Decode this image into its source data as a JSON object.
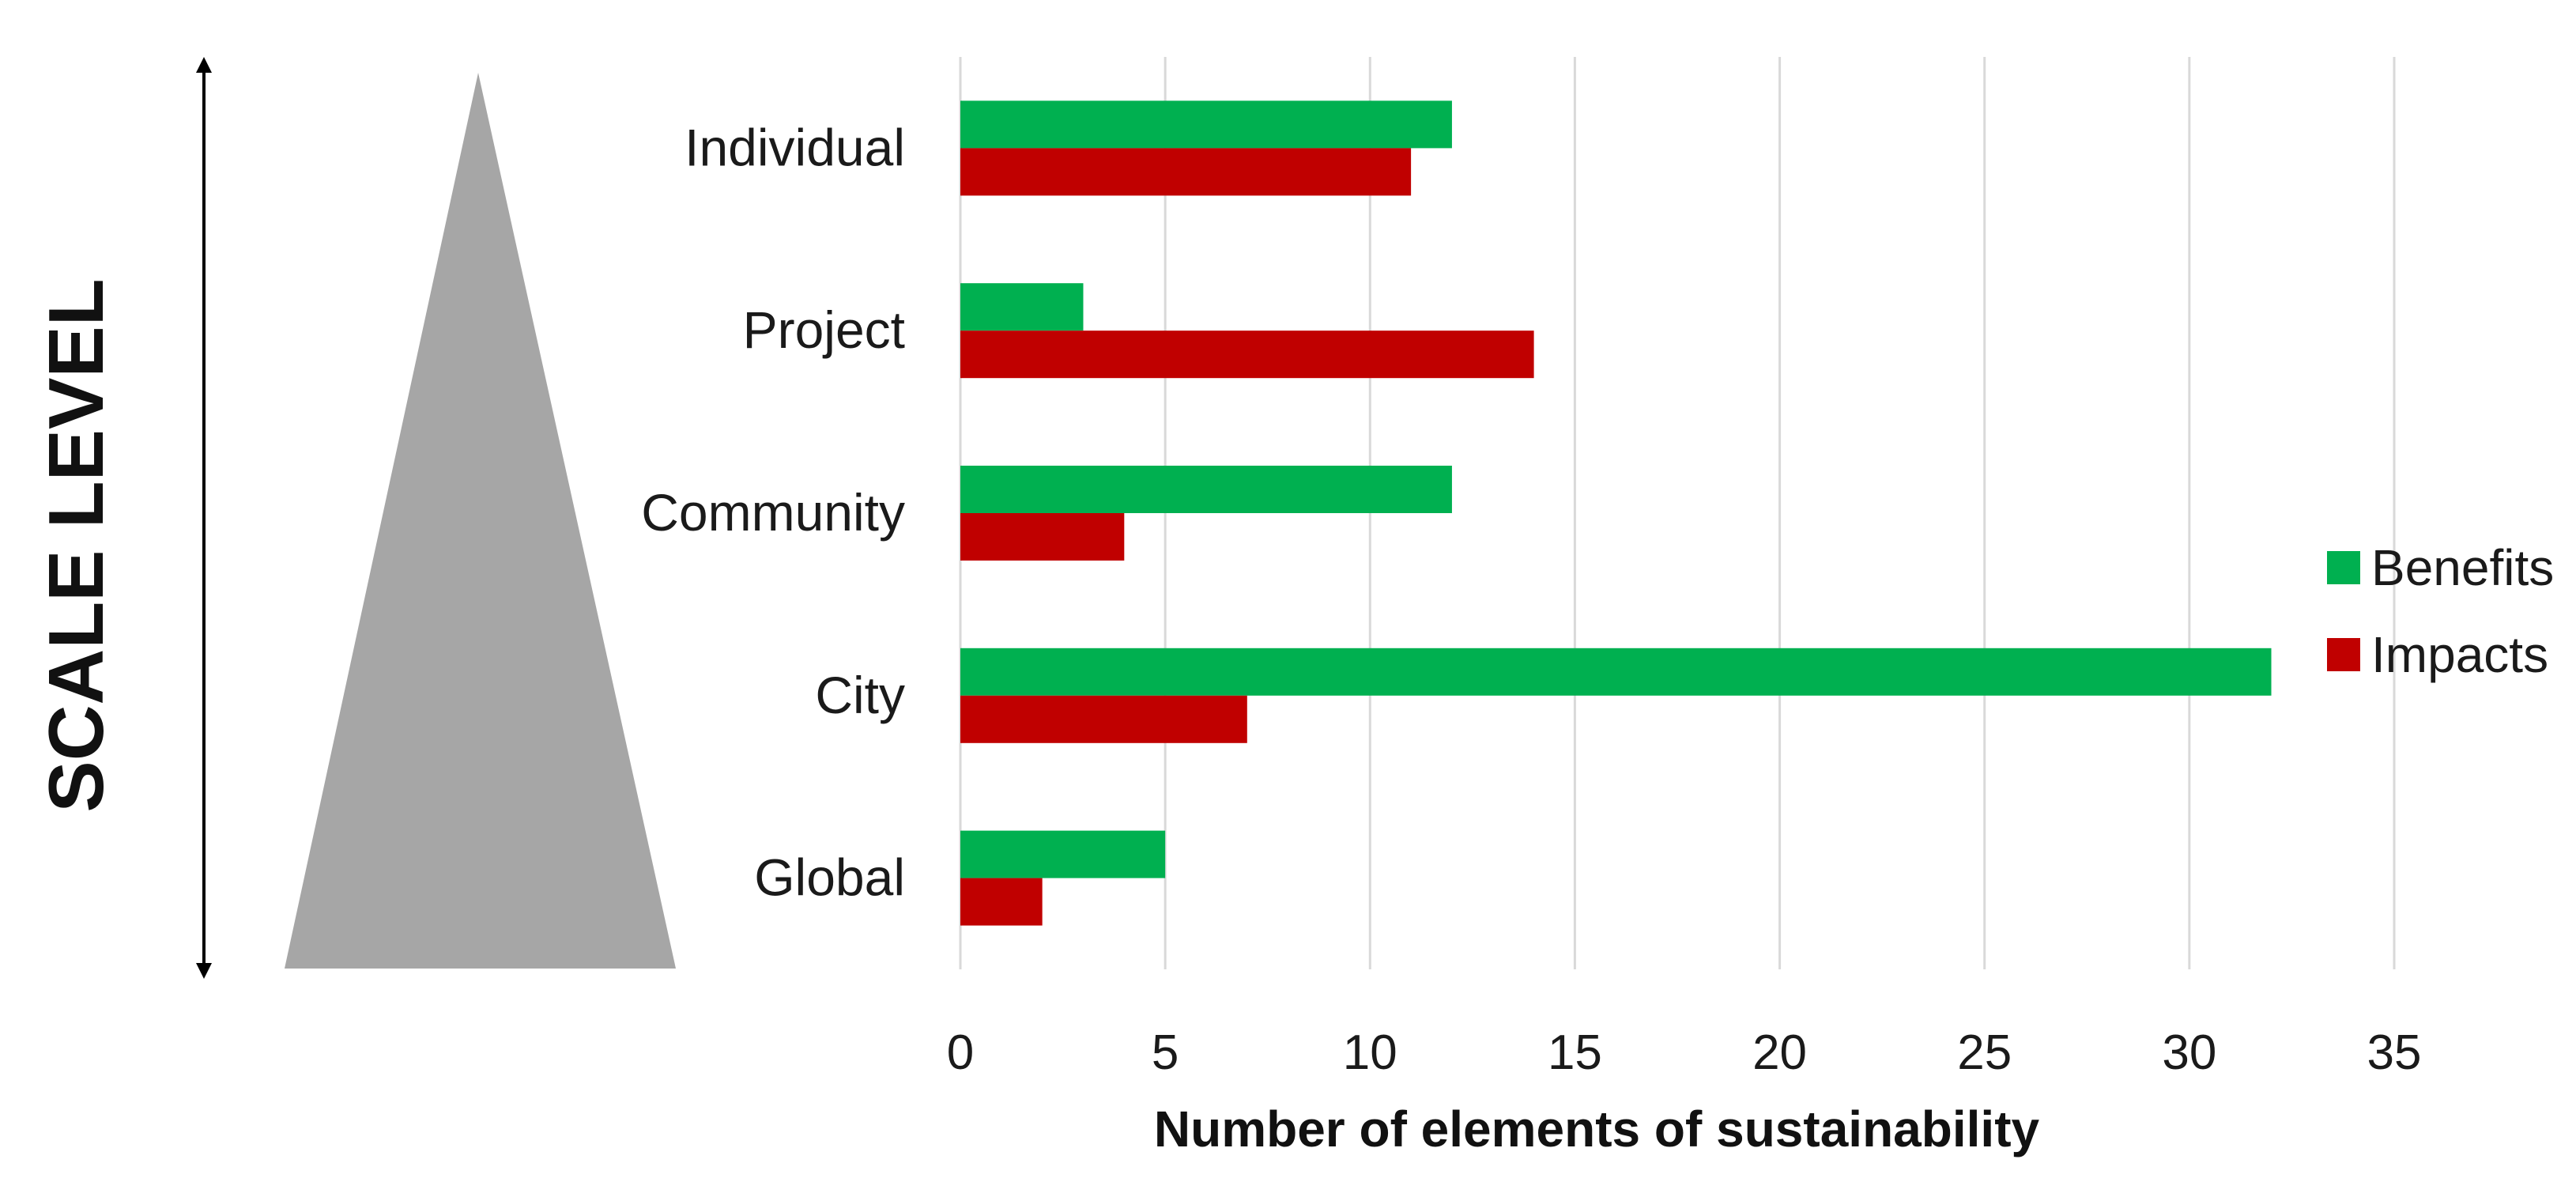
{
  "chart_data": {
    "type": "bar",
    "orientation": "horizontal",
    "categories": [
      "Individual",
      "Project",
      "Community",
      "City",
      "Global"
    ],
    "series": [
      {
        "name": "Benefits",
        "values": [
          12,
          3,
          12,
          32,
          5
        ],
        "color": "#00b050"
      },
      {
        "name": "Impacts",
        "values": [
          11,
          14,
          4,
          7,
          2
        ],
        "color": "#c00000"
      }
    ],
    "xlabel": "Number of elements of sustainability",
    "side_label": "SCALE LEVEL",
    "xlim": [
      0,
      35
    ],
    "xticks": [
      0,
      5,
      10,
      15,
      20,
      25,
      30,
      35
    ],
    "grid": "vertical",
    "legend_position": "right"
  },
  "colors": {
    "triangle": "#a6a6a6",
    "arrow": "#000000"
  }
}
